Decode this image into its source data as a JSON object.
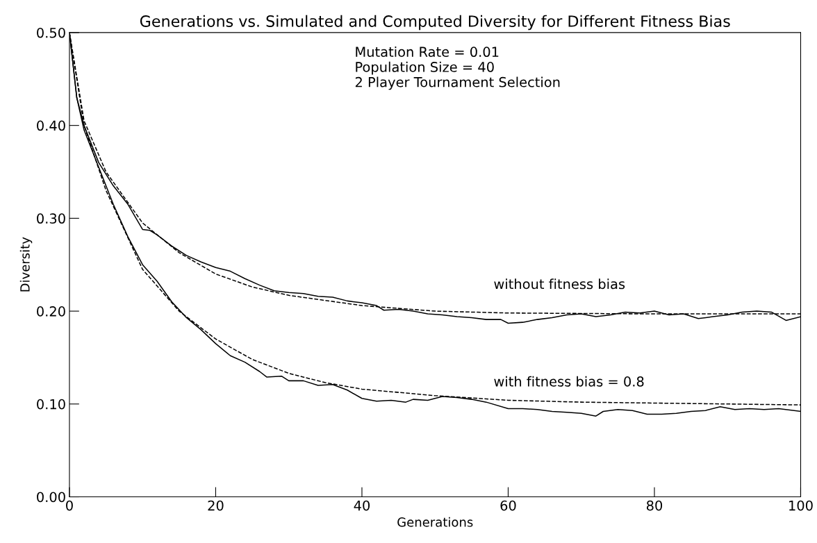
{
  "chart_data": {
    "type": "line",
    "title": "Generations vs. Simulated and Computed Diversity for Different Fitness Bias",
    "xlabel": "Generations",
    "ylabel": "Diversity",
    "xlim": [
      0,
      100
    ],
    "ylim": [
      0,
      0.5
    ],
    "xticks": [
      0,
      20,
      40,
      60,
      80,
      100
    ],
    "yticks": [
      {
        "value": 0,
        "label": "0.00"
      },
      {
        "value": 0.1,
        "label": "0.10"
      },
      {
        "value": 0.2,
        "label": "0.20"
      },
      {
        "value": 0.3,
        "label": "0.30"
      },
      {
        "value": 0.4,
        "label": "0.40"
      },
      {
        "value": 0.5,
        "label": "0.50"
      }
    ],
    "grid": false,
    "legend": false,
    "series": [
      {
        "color": "#000000",
        "line_style": "solid",
        "x": [
          0,
          1,
          2,
          4,
          6,
          8,
          10,
          11,
          12,
          14,
          16,
          18,
          20,
          22,
          24,
          26,
          28,
          30,
          32,
          34,
          36,
          38,
          40,
          42,
          43,
          45,
          47,
          49,
          51,
          53,
          55,
          57,
          59,
          60,
          62,
          64,
          66,
          68,
          70,
          72,
          74,
          76,
          78,
          80,
          82,
          84,
          86,
          88,
          90,
          92,
          94,
          96,
          98,
          100
        ],
        "values": [
          0.5,
          0.43,
          0.4,
          0.36,
          0.335,
          0.315,
          0.288,
          0.287,
          0.282,
          0.27,
          0.26,
          0.253,
          0.247,
          0.243,
          0.235,
          0.228,
          0.222,
          0.22,
          0.219,
          0.216,
          0.215,
          0.211,
          0.209,
          0.206,
          0.201,
          0.202,
          0.2,
          0.197,
          0.196,
          0.194,
          0.193,
          0.191,
          0.191,
          0.187,
          0.188,
          0.191,
          0.193,
          0.196,
          0.197,
          0.194,
          0.196,
          0.199,
          0.198,
          0.2,
          0.196,
          0.197,
          0.192,
          0.194,
          0.196,
          0.199,
          0.2,
          0.199,
          0.19,
          0.194
        ]
      },
      {
        "color": "#000000",
        "line_style": "dashed",
        "x": [
          0,
          2,
          5,
          10,
          15,
          20,
          25,
          30,
          40,
          50,
          60,
          80,
          100
        ],
        "values": [
          0.5,
          0.405,
          0.35,
          0.295,
          0.263,
          0.24,
          0.226,
          0.217,
          0.206,
          0.2,
          0.198,
          0.197,
          0.197
        ]
      },
      {
        "color": "#000000",
        "line_style": "solid",
        "x": [
          0,
          1,
          2,
          4,
          6,
          8,
          10,
          12,
          14,
          16,
          18,
          20,
          22,
          24,
          26,
          27,
          29,
          30,
          32,
          34,
          36,
          38,
          40,
          42,
          44,
          46,
          47,
          49,
          51,
          53,
          55,
          57,
          60,
          62,
          64,
          66,
          68,
          70,
          72,
          73,
          75,
          77,
          79,
          81,
          83,
          85,
          87,
          89,
          91,
          93,
          95,
          97,
          100
        ],
        "values": [
          0.5,
          0.43,
          0.395,
          0.355,
          0.315,
          0.28,
          0.25,
          0.232,
          0.21,
          0.193,
          0.18,
          0.165,
          0.152,
          0.145,
          0.135,
          0.129,
          0.13,
          0.125,
          0.125,
          0.12,
          0.121,
          0.115,
          0.106,
          0.103,
          0.104,
          0.102,
          0.105,
          0.104,
          0.108,
          0.107,
          0.105,
          0.102,
          0.095,
          0.095,
          0.094,
          0.092,
          0.091,
          0.09,
          0.087,
          0.092,
          0.094,
          0.093,
          0.089,
          0.089,
          0.09,
          0.092,
          0.093,
          0.097,
          0.094,
          0.095,
          0.094,
          0.095,
          0.092
        ]
      },
      {
        "color": "#000000",
        "line_style": "dashed",
        "x": [
          0,
          2,
          5,
          10,
          15,
          20,
          25,
          30,
          35,
          40,
          50,
          60,
          70,
          80,
          100
        ],
        "values": [
          0.5,
          0.4,
          0.33,
          0.245,
          0.2,
          0.17,
          0.148,
          0.133,
          0.123,
          0.116,
          0.109,
          0.104,
          0.102,
          0.101,
          0.099
        ]
      }
    ],
    "annotations": [
      "Mutation Rate = 0.01\nPopulation Size = 40\n2 Player Tournament Selection",
      "without fitness bias",
      "with fitness bias = 0.8"
    ]
  }
}
